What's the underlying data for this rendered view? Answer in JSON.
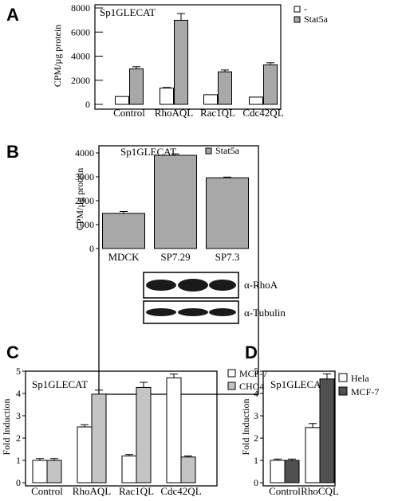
{
  "panel_letters": [
    "A",
    "B",
    "C",
    "D"
  ],
  "colors": {
    "white_bar": "#ffffff",
    "gray_bar": "#a8a8a8",
    "light_gray_bar": "#c4c4c4",
    "dark_bar": "#505050",
    "stroke": "#000000"
  },
  "chart_data": [
    {
      "id": "A",
      "type": "bar",
      "title": "Sp1GLECAT",
      "ylabel": "CPM/µg protein",
      "xlabel": "",
      "categories": [
        "Control",
        "RhoAQL",
        "Rac1QL",
        "Cdc42QL"
      ],
      "ylim": [
        0,
        8000
      ],
      "yticks": [
        0,
        2000,
        4000,
        6000,
        8000
      ],
      "series": [
        {
          "name": "-",
          "values": [
            650,
            1350,
            800,
            600
          ],
          "errors": [
            0,
            50,
            0,
            0
          ]
        },
        {
          "name": "Stat5a",
          "values": [
            2950,
            6980,
            2700,
            3280
          ],
          "errors": [
            170,
            560,
            150,
            170
          ]
        }
      ],
      "legend_position": "right"
    },
    {
      "id": "B",
      "type": "bar",
      "title": "Sp1GLECAT",
      "ylabel": "CPM/µg protein",
      "xlabel": "",
      "categories": [
        "MDCK",
        "SP7.29",
        "SP7.3"
      ],
      "ylim": [
        0,
        4000
      ],
      "yticks": [
        0,
        1000,
        2000,
        3000,
        4000
      ],
      "series": [
        {
          "name": "Stat5a",
          "values": [
            1470,
            3900,
            2960
          ],
          "errors": [
            80,
            60,
            30
          ]
        }
      ],
      "legend_position": "top-right"
    },
    {
      "id": "C",
      "type": "bar",
      "title": "Sp1GLECAT",
      "ylabel": "Fold Induction",
      "xlabel": "",
      "categories": [
        "Control",
        "RhoAQL",
        "Rac1QL",
        "Cdc42QL"
      ],
      "ylim": [
        0,
        5
      ],
      "yticks": [
        0,
        1,
        2,
        3,
        4,
        5
      ],
      "series": [
        {
          "name": "MCF-7",
          "values": [
            1.0,
            2.5,
            1.2,
            4.7
          ],
          "errors": [
            0.08,
            0.1,
            0.06,
            0.17
          ]
        },
        {
          "name": "CHO4",
          "values": [
            1.0,
            3.97,
            4.27,
            1.15
          ],
          "errors": [
            0.08,
            0.18,
            0.23,
            0.05
          ]
        }
      ],
      "legend_position": "right"
    },
    {
      "id": "D",
      "type": "bar",
      "title": "Sp1GLECAT",
      "ylabel": "Fold Induction",
      "xlabel": "",
      "categories": [
        "Control",
        "RhoCQL"
      ],
      "ylim": [
        0,
        5
      ],
      "yticks": [
        0,
        1,
        2,
        3,
        4,
        5
      ],
      "series": [
        {
          "name": "Hela",
          "values": [
            1.0,
            2.47
          ],
          "errors": [
            0.06,
            0.18
          ]
        },
        {
          "name": "MCF-7",
          "values": [
            1.0,
            4.65
          ],
          "errors": [
            0.06,
            0.23
          ]
        }
      ],
      "legend_position": "right"
    }
  ],
  "blot": {
    "labels": [
      "α-RhoA",
      "α-Tubulin"
    ]
  }
}
